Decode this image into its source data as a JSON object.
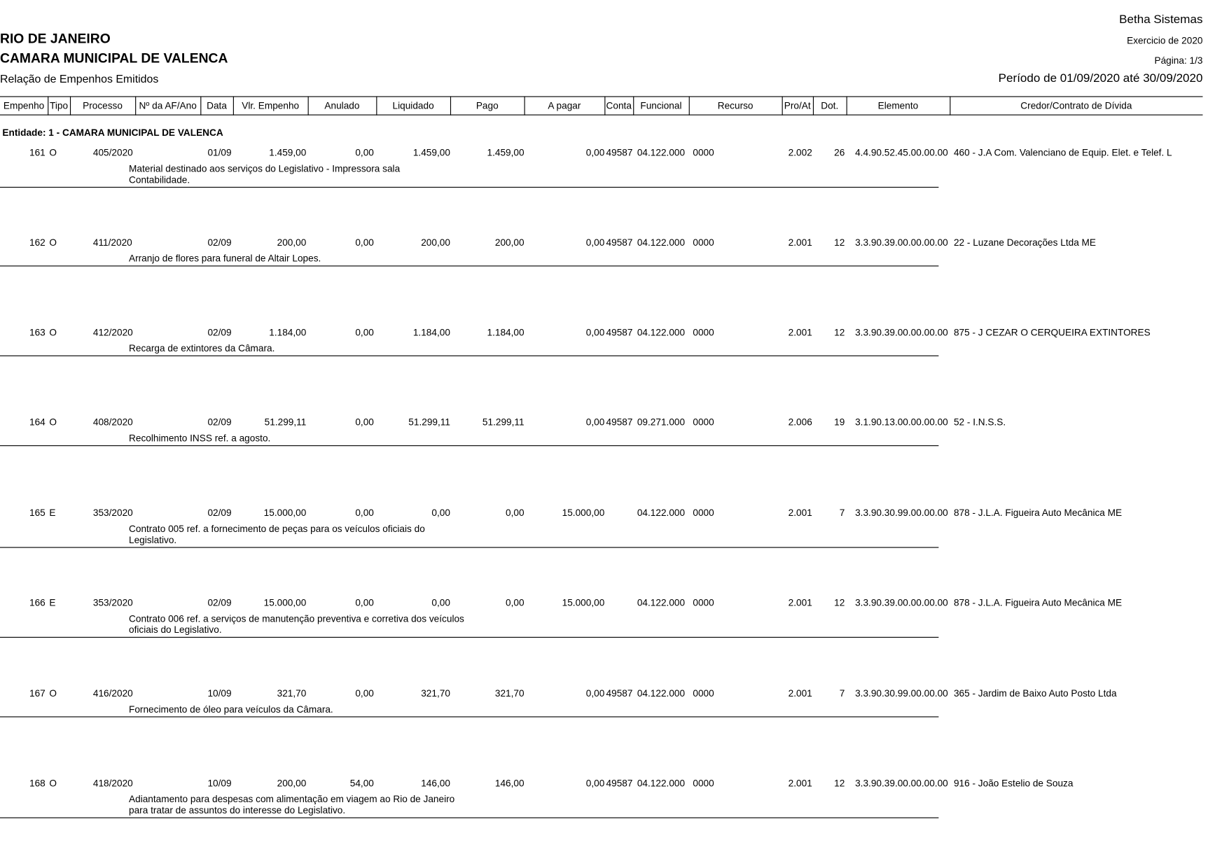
{
  "header": {
    "state": "RIO DE JANEIRO",
    "organization": "CAMARA MUNICIPAL DE VALENCA",
    "report_title": "Relação de Empenhos Emitidos",
    "company": "Betha Sistemas",
    "exercise": "Exercicio de 2020",
    "page": "Página: 1/3",
    "period": "Período de 01/09/2020 até 30/09/2020"
  },
  "columns": [
    "Empenho",
    "Tipo",
    "Processo",
    "Nº da AF/Ano",
    "Data",
    "Vlr. Empenho",
    "Anulado",
    "Liquidado",
    "Pago",
    "A pagar",
    "Conta",
    "Funcional",
    "Recurso",
    "Pro/At",
    "Dot.",
    "Elemento",
    "Credor/Contrato de Dívida"
  ],
  "entity": "Entidade: 1 - CAMARA MUNICIPAL DE VALENCA",
  "rows": [
    {
      "empenho": "161",
      "tipo": "O",
      "processo": "405/2020",
      "data": "01/09",
      "vlr_empenho": "1.459,00",
      "anulado": "0,00",
      "liquidado": "1.459,00",
      "pago": "1.459,00",
      "a_pagar": "0,00",
      "conta": "49587",
      "funcional": "04.122.000",
      "recurso": "0000",
      "pro_at": "2.002",
      "dot": "26",
      "elemento": "4.4.90.52.45.00.00.00",
      "credor": "460 - J.A Com. Valenciano de Equip. Elet. e Telef. L",
      "descricao": [
        "Material destinado aos serviços do Legislativo - Impressora sala",
        "Contabilidade."
      ]
    },
    {
      "empenho": "162",
      "tipo": "O",
      "processo": "411/2020",
      "data": "02/09",
      "vlr_empenho": "200,00",
      "anulado": "0,00",
      "liquidado": "200,00",
      "pago": "200,00",
      "a_pagar": "0,00",
      "conta": "49587",
      "funcional": "04.122.000",
      "recurso": "0000",
      "pro_at": "2.001",
      "dot": "12",
      "elemento": "3.3.90.39.00.00.00.00",
      "credor": "22 - Luzane Decorações Ltda ME",
      "descricao": [
        "Arranjo de flores para funeral de Altair Lopes."
      ]
    },
    {
      "empenho": "163",
      "tipo": "O",
      "processo": "412/2020",
      "data": "02/09",
      "vlr_empenho": "1.184,00",
      "anulado": "0,00",
      "liquidado": "1.184,00",
      "pago": "1.184,00",
      "a_pagar": "0,00",
      "conta": "49587",
      "funcional": "04.122.000",
      "recurso": "0000",
      "pro_at": "2.001",
      "dot": "12",
      "elemento": "3.3.90.39.00.00.00.00",
      "credor": "875 - J CEZAR O CERQUEIRA EXTINTORES",
      "descricao": [
        "Recarga de extintores da Câmara."
      ]
    },
    {
      "empenho": "164",
      "tipo": "O",
      "processo": "408/2020",
      "data": "02/09",
      "vlr_empenho": "51.299,11",
      "anulado": "0,00",
      "liquidado": "51.299,11",
      "pago": "51.299,11",
      "a_pagar": "0,00",
      "conta": "49587",
      "funcional": "09.271.000",
      "recurso": "0000",
      "pro_at": "2.006",
      "dot": "19",
      "elemento": "3.1.90.13.00.00.00.00",
      "credor": "52 - I.N.S.S.",
      "descricao": [
        "Recolhimento INSS ref. a agosto."
      ]
    },
    {
      "empenho": "165",
      "tipo": "E",
      "processo": "353/2020",
      "data": "02/09",
      "vlr_empenho": "15.000,00",
      "anulado": "0,00",
      "liquidado": "0,00",
      "pago": "0,00",
      "a_pagar": "15.000,00",
      "funcional": "04.122.000",
      "recurso": "0000",
      "pro_at": "2.001",
      "dot": "7",
      "elemento": "3.3.90.30.99.00.00.00",
      "credor": "878 - J.L.A. Figueira Auto Mecânica ME",
      "descricao": [
        "Contrato 005 ref. a fornecimento de peças para os veículos oficiais do",
        "Legislativo."
      ]
    },
    {
      "empenho": "166",
      "tipo": "E",
      "processo": "353/2020",
      "data": "02/09",
      "vlr_empenho": "15.000,00",
      "anulado": "0,00",
      "liquidado": "0,00",
      "pago": "0,00",
      "a_pagar": "15.000,00",
      "funcional": "04.122.000",
      "recurso": "0000",
      "pro_at": "2.001",
      "dot": "12",
      "elemento": "3.3.90.39.00.00.00.00",
      "credor": "878 - J.L.A. Figueira Auto Mecânica ME",
      "descricao": [
        "Contrato 006 ref. a serviços de manutenção preventiva e corretiva dos veículos",
        "oficiais do Legislativo."
      ]
    },
    {
      "empenho": "167",
      "tipo": "O",
      "processo": "416/2020",
      "data": "10/09",
      "vlr_empenho": "321,70",
      "anulado": "0,00",
      "liquidado": "321,70",
      "pago": "321,70",
      "a_pagar": "0,00",
      "conta": "49587",
      "funcional": "04.122.000",
      "recurso": "0000",
      "pro_at": "2.001",
      "dot": "7",
      "elemento": "3.3.90.30.99.00.00.00",
      "credor": "365 - Jardim de Baixo Auto Posto Ltda",
      "descricao": [
        "Fornecimento de óleo para veículos da Câmara."
      ]
    },
    {
      "empenho": "168",
      "tipo": "O",
      "processo": "418/2020",
      "data": "10/09",
      "vlr_empenho": "200,00",
      "anulado": "54,00",
      "liquidado": "146,00",
      "pago": "146,00",
      "a_pagar": "0,00",
      "conta": "49587",
      "funcional": "04.122.000",
      "recurso": "0000",
      "pro_at": "2.001",
      "dot": "12",
      "elemento": "3.3.90.39.00.00.00.00",
      "credor": "916 - João Estelio de Souza",
      "descricao": [
        "Adiantamento para despesas com alimentação em viagem ao Rio de Janeiro",
        "para tratar de assuntos do interesse do Legislativo."
      ]
    }
  ]
}
